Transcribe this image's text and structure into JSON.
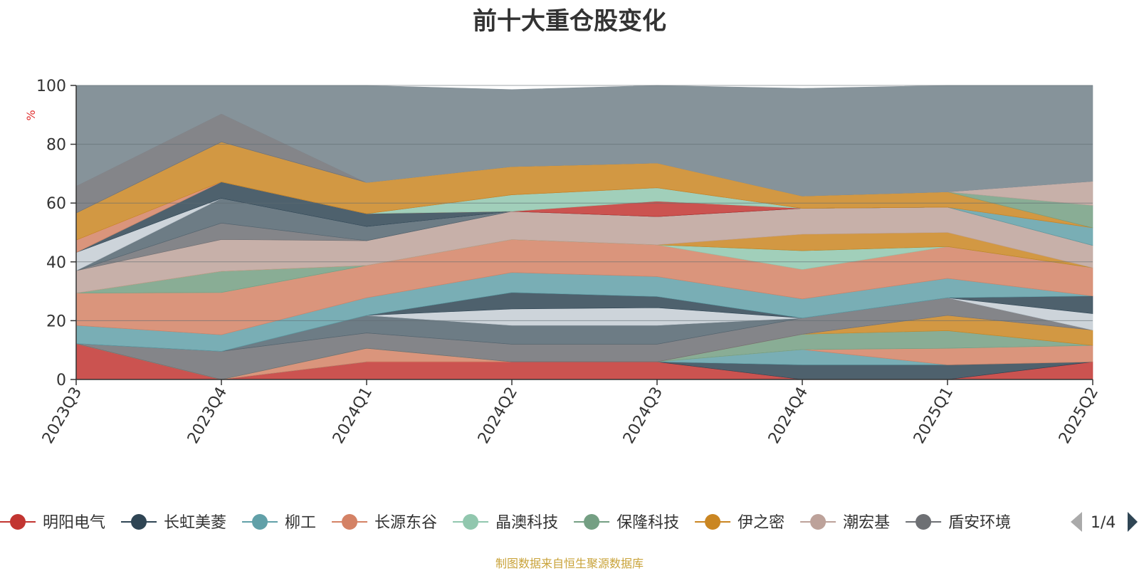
{
  "page_title": "前十大重仓股变化",
  "source_note": "制图数据来自恒生聚源数据库",
  "colors": {
    "background_band": "#86939a",
    "title": "#333333",
    "source": "#c9a33a",
    "pager_active": "#2f4554",
    "pager_inactive": "#aaaaaa"
  },
  "legend": {
    "page_label": "1/4"
  },
  "chart_data": {
    "type": "area",
    "title": "前十大重仓股变化",
    "ylabel": "%",
    "xlabel": "",
    "ylim": [
      0,
      100
    ],
    "y_ticks": [
      "0",
      "20",
      "40",
      "60",
      "80",
      "100"
    ],
    "stacked": true,
    "grid": true,
    "legend_position": "bottom",
    "categories": [
      "2023Q3",
      "2023Q4",
      "2024Q1",
      "2024Q2",
      "2024Q3",
      "2024Q4",
      "2025Q1",
      "2025Q2"
    ],
    "series": [
      {
        "name": "明阳电气",
        "color": "#c23531",
        "values": [
          12.2,
          0,
          6,
          6,
          6,
          0,
          0,
          6
        ],
        "legend": true
      },
      {
        "name": "长虹美菱",
        "color": "#2f4554",
        "values": [
          0,
          0,
          0,
          0,
          0,
          5,
          5,
          0
        ],
        "legend": true
      },
      {
        "name": "柳工",
        "color": "#61a0a8",
        "values": [
          0,
          0,
          0,
          0,
          0,
          5.2,
          0,
          0
        ],
        "legend": true
      },
      {
        "name": "长源东谷",
        "color": "#d48265",
        "values": [
          0,
          0,
          4.6,
          0,
          0,
          0,
          5.6,
          5.6
        ],
        "legend": true
      },
      {
        "name": "晶澳科技",
        "color": "#91c7ae",
        "values": [
          0,
          0,
          0,
          0,
          0,
          0,
          0,
          0
        ],
        "legend": true
      },
      {
        "name": "保隆科技",
        "color": "#749f83",
        "values": [
          0,
          0,
          0,
          0,
          0,
          5.2,
          6,
          0
        ],
        "legend": true
      },
      {
        "name": "伊之密",
        "color": "#ca8622",
        "values": [
          0,
          0,
          0,
          0,
          0,
          0,
          5.2,
          5.2
        ],
        "legend": true
      },
      {
        "name": "潮宏基",
        "color": "#bda29a",
        "values": [
          0,
          0,
          0,
          0,
          0,
          0,
          0,
          0
        ],
        "legend": true
      },
      {
        "name": "盾安环境",
        "color": "#6e7074",
        "values": [
          0,
          9.6,
          5.2,
          6,
          6,
          5.5,
          6,
          0
        ],
        "legend": true
      },
      {
        "name": "",
        "color": "#546570",
        "values": [
          0,
          0,
          6,
          6.4,
          6.4,
          0,
          0,
          0
        ],
        "legend": false
      },
      {
        "name": "",
        "color": "#c4ccd3",
        "values": [
          0,
          0,
          0,
          5.6,
          6,
          0,
          0,
          5.6
        ],
        "legend": false
      },
      {
        "name": "",
        "color": "#2f4554",
        "values": [
          0,
          0,
          0,
          5.6,
          3.8,
          0,
          0,
          6
        ],
        "legend": false
      },
      {
        "name": "",
        "color": "#61a0a8",
        "values": [
          6.2,
          5.6,
          6,
          6.8,
          6.8,
          6.5,
          6.6,
          0
        ],
        "legend": false
      },
      {
        "name": "",
        "color": "#d48265",
        "values": [
          11,
          14.4,
          11,
          11.2,
          10.8,
          10,
          10.8,
          9.6
        ],
        "legend": false
      },
      {
        "name": "",
        "color": "#91c7ae",
        "values": [
          0,
          0,
          0,
          0,
          0,
          6.4,
          0,
          0
        ],
        "legend": false
      },
      {
        "name": "",
        "color": "#749f83",
        "values": [
          0,
          7.2,
          0,
          0,
          0,
          0,
          0,
          0
        ],
        "legend": false
      },
      {
        "name": "",
        "color": "#ca8622",
        "values": [
          0,
          0,
          0,
          0,
          0,
          5.6,
          4.8,
          0
        ],
        "legend": false
      },
      {
        "name": "",
        "color": "#bda29a",
        "values": [
          7.6,
          10.8,
          8.4,
          9.6,
          9.6,
          8.8,
          8.6,
          7.6
        ],
        "legend": false
      },
      {
        "name": "",
        "color": "#6e7074",
        "values": [
          0,
          5.6,
          0,
          0,
          0,
          0,
          0,
          0
        ],
        "legend": false
      },
      {
        "name": "",
        "color": "#546570",
        "values": [
          0,
          8.4,
          4.8,
          0,
          0,
          0,
          0,
          0
        ],
        "legend": false
      },
      {
        "name": "",
        "color": "#c4ccd3",
        "values": [
          6.2,
          0,
          0,
          0,
          0,
          0,
          0,
          0
        ],
        "legend": false
      },
      {
        "name": "",
        "color": "#2f4554",
        "values": [
          0,
          5.6,
          4.4,
          0,
          0,
          0,
          0,
          0
        ],
        "legend": false
      },
      {
        "name": "",
        "color": "#c23531",
        "values": [
          0,
          0,
          0,
          0,
          5.2,
          0,
          0,
          0
        ],
        "legend": false
      },
      {
        "name": "",
        "color": "#91c7ae",
        "values": [
          0,
          0,
          0,
          5.6,
          4.6,
          0,
          0,
          0
        ],
        "legend": false
      },
      {
        "name": "",
        "color": "#61a0a8",
        "values": [
          0,
          0,
          0,
          0,
          0,
          0,
          0,
          6
        ],
        "legend": false
      },
      {
        "name": "",
        "color": "#d48265",
        "values": [
          4.2,
          0,
          0,
          0,
          0,
          0,
          0,
          0
        ],
        "legend": false
      },
      {
        "name": "",
        "color": "#ca8622",
        "values": [
          9.2,
          13.6,
          10.6,
          9.6,
          8.4,
          4.2,
          5.2,
          0
        ],
        "legend": false
      },
      {
        "name": "",
        "color": "#749f83",
        "values": [
          0,
          0,
          0,
          0,
          0,
          0,
          0,
          7.6
        ],
        "legend": false
      },
      {
        "name": "",
        "color": "#bda29a",
        "values": [
          0,
          0,
          0,
          0,
          0,
          0,
          0,
          8.2
        ],
        "legend": false
      },
      {
        "name": "",
        "color": "#6e7074",
        "values": [
          9.2,
          9.6,
          0,
          0,
          0,
          0,
          0,
          0
        ],
        "legend": false
      },
      {
        "name": "",
        "color": "#86939a",
        "values": [
          34.2,
          9.6,
          33.0,
          26.2,
          31.4,
          36.6,
          36.2,
          34.8
        ],
        "legend": false
      }
    ]
  }
}
